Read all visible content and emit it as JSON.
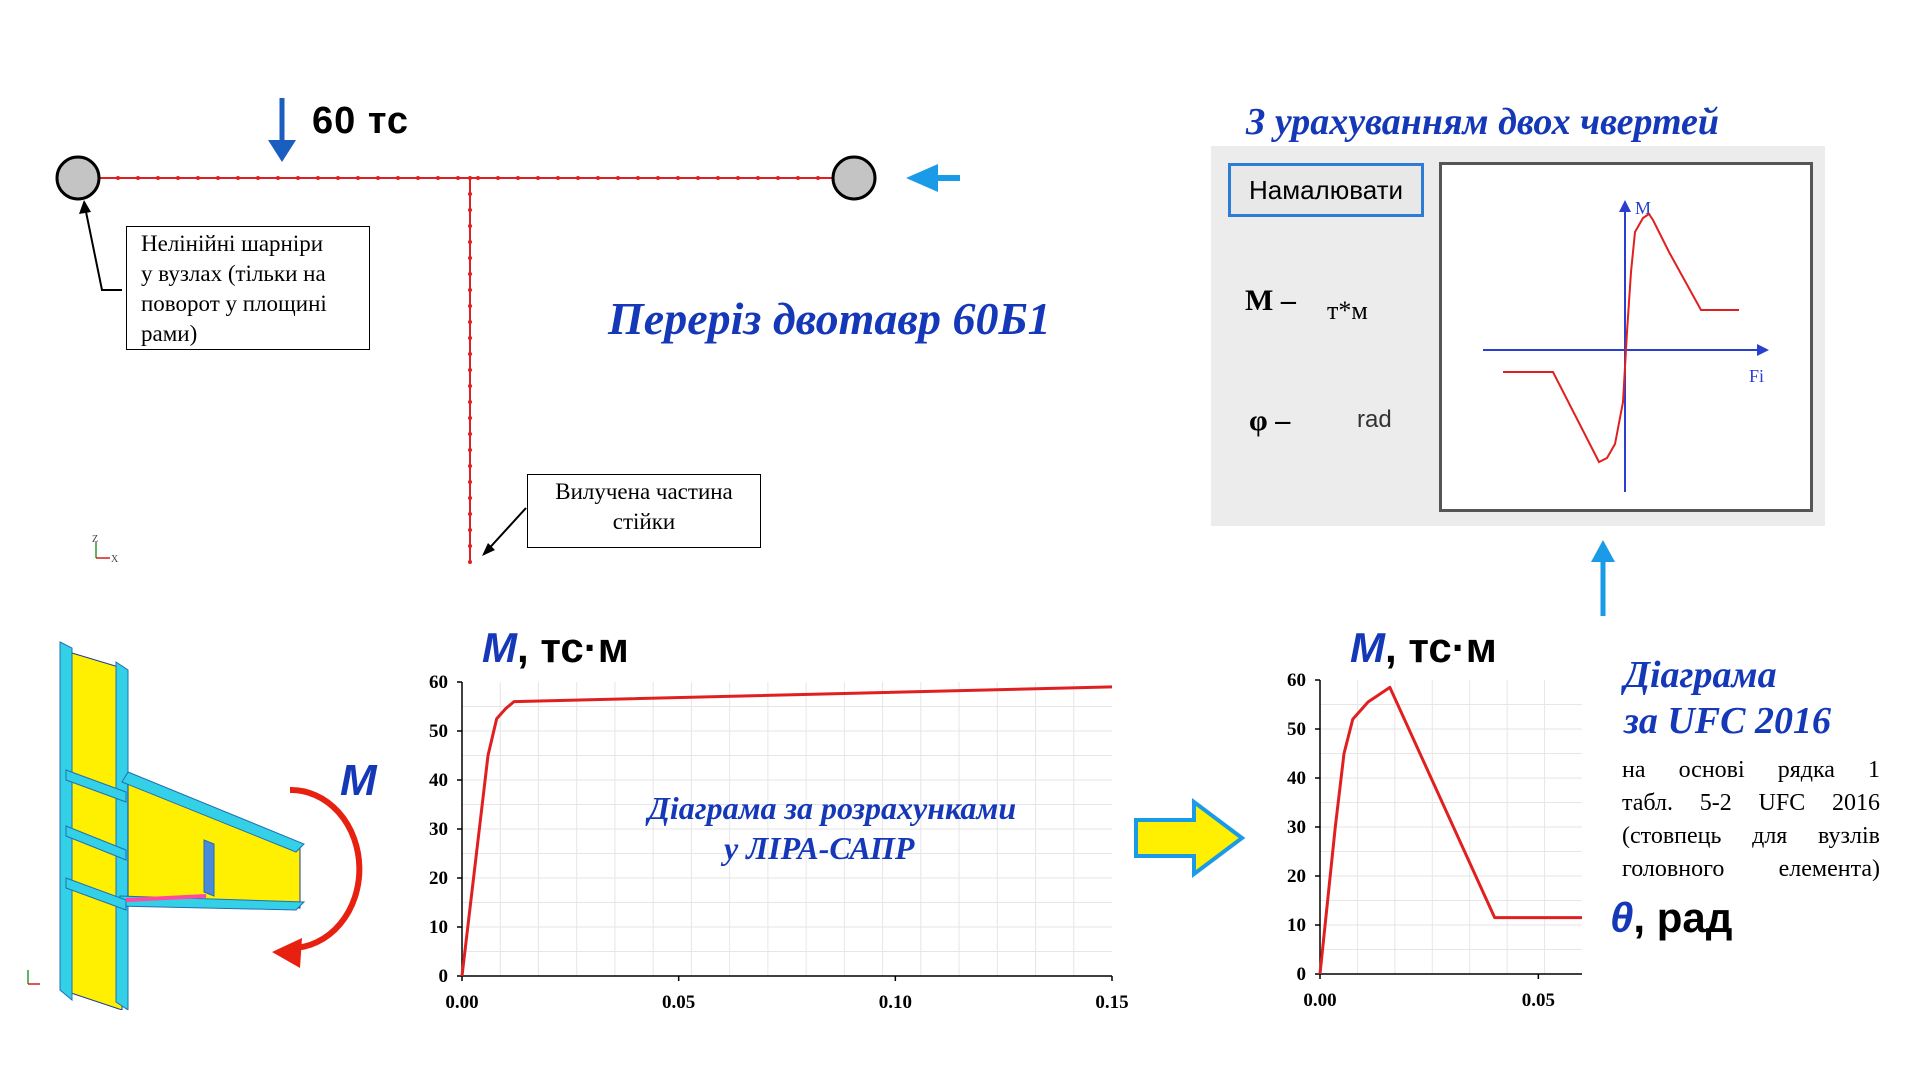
{
  "frame": {
    "load_label": "60 тс",
    "hinge_note": [
      "Нелінійні шарніри",
      "у вузлах (тільки на",
      "поворот у площині",
      "рами)"
    ],
    "removed_note": [
      "Вилучена частина",
      "стійки"
    ],
    "section_title": "Переріз двотавр 60Б1",
    "axes_z": "Z",
    "axes_x": "X"
  },
  "panel": {
    "title": "З урахуванням двох чвертей",
    "draw_button": "Намалювати",
    "m_symbol": "M –",
    "m_unit": "т*м",
    "phi_symbol": "φ –",
    "phi_unit": "rad",
    "plot_axis_y": "M",
    "plot_axis_x": "Fi"
  },
  "node3d": {
    "moment_label": "M"
  },
  "colors": {
    "accent_blue": "#1538b8",
    "curve_red": "#e02020",
    "arrow_blue": "#1a9be8",
    "yellow": "#ffef00",
    "cyan": "#33d0e8"
  },
  "chart_data": [
    {
      "type": "line",
      "title": "",
      "ylabel_symbol": "M",
      "ylabel_unit": ", тс·м",
      "annotation": [
        "Діаграма за розрахунками",
        "у ЛІРА-САПР"
      ],
      "ylim": [
        0,
        60
      ],
      "xlim": [
        0,
        0.15
      ],
      "yticks": [
        "0",
        "10",
        "20",
        "30",
        "40",
        "50",
        "60"
      ],
      "xticks": [
        "0.00",
        "0.05",
        "0.10",
        "0.15"
      ],
      "grid": true,
      "series": [
        {
          "x": [
            0,
            0.004,
            0.006,
            0.008,
            0.01,
            0.012,
            0.15
          ],
          "y": [
            0,
            30,
            45,
            52.5,
            54.5,
            56,
            59
          ]
        }
      ]
    },
    {
      "type": "line",
      "title": "",
      "ylabel_symbol": "M",
      "ylabel_unit": ", тс·м",
      "xlabel_symbol": "θ",
      "xlabel_unit": ", рад",
      "ylim": [
        0,
        60
      ],
      "xlim": [
        0,
        0.06
      ],
      "yticks": [
        "0",
        "10",
        "20",
        "30",
        "40",
        "50",
        "60"
      ],
      "xticks": [
        "0.00",
        "0.05"
      ],
      "grid": true,
      "side_title": [
        "Діаграма",
        "за UFC 2016"
      ],
      "side_text": [
        "на основі рядка 1",
        "табл. 5-2 UFC 2016",
        "(стовпець для вузлів",
        "головного елемента)"
      ],
      "series": [
        {
          "x": [
            0,
            0.0035,
            0.0055,
            0.0075,
            0.011,
            0.016,
            0.04,
            0.06
          ],
          "y": [
            0,
            30,
            45,
            52,
            55.5,
            58.5,
            11.5,
            11.5
          ]
        }
      ]
    }
  ]
}
